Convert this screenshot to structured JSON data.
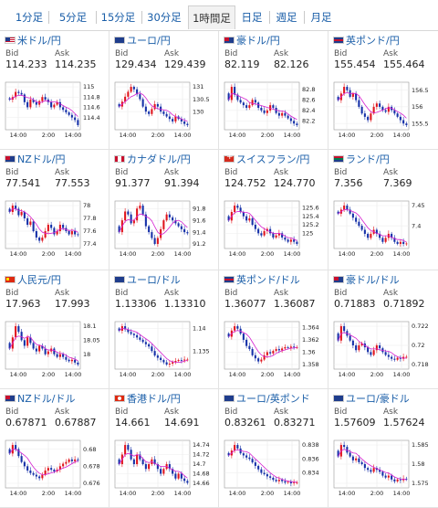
{
  "tabs": [
    {
      "label": "1分足",
      "active": false
    },
    {
      "label": "5分足",
      "active": false
    },
    {
      "label": "15分足",
      "active": false
    },
    {
      "label": "30分足",
      "active": false
    },
    {
      "label": "1時間足",
      "active": true
    },
    {
      "label": "日足",
      "active": false
    },
    {
      "label": "週足",
      "active": false
    },
    {
      "label": "月足",
      "active": false
    }
  ],
  "labels": {
    "bid": "Bid",
    "ask": "Ask"
  },
  "colors": {
    "up": "#e0141c",
    "down": "#1530a8",
    "ma": "#d51fd0",
    "link": "#1a5ea8"
  },
  "pairs": [
    {
      "name": "米ドル/円",
      "flag": "us",
      "bid": "114.233",
      "ask": "114.235",
      "chart": {
        "ticks": [
          "115",
          "114.8",
          "114.6",
          "114.4"
        ],
        "xlabels": [
          "14:00",
          "2:00",
          "14:00"
        ],
        "closes": [
          114.75,
          114.8,
          114.9,
          114.88,
          114.85,
          114.7,
          114.6,
          114.75,
          114.7,
          114.65,
          114.72,
          114.8,
          114.75,
          114.7,
          114.6,
          114.65,
          114.7,
          114.6,
          114.55,
          114.5,
          114.45,
          114.4,
          114.35,
          114.25
        ]
      }
    },
    {
      "name": "ユーロ/円",
      "flag": "eu",
      "bid": "129.434",
      "ask": "129.439",
      "chart": {
        "ticks": [
          "131",
          "130.5",
          "130"
        ],
        "xlabels": [
          "14:00",
          "2:00",
          "14:00"
        ],
        "closes": [
          130.2,
          130.4,
          130.6,
          130.8,
          131.0,
          130.9,
          130.7,
          130.5,
          130.2,
          130.0,
          129.9,
          130.1,
          130.3,
          130.2,
          130.0,
          129.9,
          129.8,
          129.7,
          129.6,
          129.8,
          129.7,
          129.6,
          129.5,
          129.45
        ]
      }
    },
    {
      "name": "豪ドル/円",
      "flag": "au",
      "bid": "82.119",
      "ask": "82.126",
      "chart": {
        "ticks": [
          "82.8",
          "82.6",
          "82.4",
          "82.2"
        ],
        "xlabels": [
          "14:00",
          "2:00",
          "14:00"
        ],
        "closes": [
          82.6,
          82.85,
          82.7,
          82.6,
          82.55,
          82.5,
          82.45,
          82.5,
          82.6,
          82.55,
          82.45,
          82.4,
          82.35,
          82.4,
          82.5,
          82.45,
          82.35,
          82.3,
          82.35,
          82.3,
          82.25,
          82.2,
          82.15,
          82.12
        ]
      }
    },
    {
      "name": "英ポンド/円",
      "flag": "gb",
      "bid": "155.454",
      "ask": "155.464",
      "chart": {
        "ticks": [
          "156.5",
          "156",
          "155.5"
        ],
        "xlabels": [
          "14:00",
          "2:00",
          "14:00"
        ],
        "closes": [
          156.2,
          156.4,
          156.6,
          156.5,
          156.3,
          156.4,
          156.2,
          156.0,
          155.8,
          155.7,
          155.6,
          155.8,
          156.0,
          156.1,
          156.0,
          155.9,
          155.85,
          156.0,
          155.9,
          155.8,
          155.7,
          155.6,
          155.5,
          155.45
        ]
      }
    },
    {
      "name": "NZドル/円",
      "flag": "nz",
      "bid": "77.541",
      "ask": "77.553",
      "chart": {
        "ticks": [
          "78",
          "77.8",
          "77.6",
          "77.4"
        ],
        "xlabels": [
          "14:00",
          "2:00",
          "14:00"
        ],
        "closes": [
          77.9,
          78.0,
          77.95,
          77.85,
          77.9,
          77.8,
          77.7,
          77.75,
          77.6,
          77.5,
          77.45,
          77.5,
          77.6,
          77.7,
          77.65,
          77.55,
          77.6,
          77.7,
          77.65,
          77.6,
          77.55,
          77.6,
          77.55,
          77.54
        ]
      }
    },
    {
      "name": "カナダドル/円",
      "flag": "ca",
      "bid": "91.377",
      "ask": "91.394",
      "chart": {
        "ticks": [
          "91.8",
          "91.6",
          "91.4",
          "91.2"
        ],
        "xlabels": [
          "14:00",
          "2:00",
          "14:00"
        ],
        "closes": [
          91.4,
          91.6,
          91.75,
          91.7,
          91.55,
          91.6,
          91.8,
          91.85,
          91.7,
          91.5,
          91.4,
          91.3,
          91.2,
          91.3,
          91.45,
          91.6,
          91.7,
          91.65,
          91.6,
          91.55,
          91.5,
          91.45,
          91.4,
          91.38
        ]
      }
    },
    {
      "name": "スイスフラン/円",
      "flag": "ch",
      "bid": "124.752",
      "ask": "124.770",
      "chart": {
        "ticks": [
          "125.6",
          "125.4",
          "125.2",
          "125"
        ],
        "xlabels": [
          "14:00",
          "2:00",
          "14:00"
        ],
        "closes": [
          125.3,
          125.5,
          125.65,
          125.6,
          125.5,
          125.4,
          125.3,
          125.35,
          125.2,
          125.1,
          125.0,
          124.95,
          125.05,
          125.1,
          125.0,
          124.9,
          124.95,
          125.0,
          124.9,
          124.85,
          124.8,
          124.85,
          124.8,
          124.75
        ]
      }
    },
    {
      "name": "ランド/円",
      "flag": "za",
      "bid": "7.356",
      "ask": "7.369",
      "chart": {
        "ticks": [
          "7.45",
          "7.4"
        ],
        "xlabels": [
          "14:00",
          "2:00",
          "14:00"
        ],
        "closes": [
          7.43,
          7.44,
          7.45,
          7.44,
          7.43,
          7.42,
          7.41,
          7.4,
          7.39,
          7.38,
          7.37,
          7.38,
          7.39,
          7.38,
          7.37,
          7.36,
          7.37,
          7.38,
          7.37,
          7.36,
          7.355,
          7.36,
          7.355,
          7.356
        ]
      }
    },
    {
      "name": "人民元/円",
      "flag": "cn",
      "bid": "17.963",
      "ask": "17.993",
      "chart": {
        "ticks": [
          "18.1",
          "18.05",
          "18"
        ],
        "xlabels": [
          "14:00",
          "2:00",
          "14:00"
        ],
        "closes": [
          18.02,
          18.06,
          18.1,
          18.08,
          18.05,
          18.03,
          18.06,
          18.04,
          18.02,
          18.01,
          18.03,
          18.02,
          18.0,
          18.01,
          18.02,
          18.0,
          17.99,
          18.0,
          17.99,
          17.98,
          17.975,
          17.98,
          17.97,
          17.963
        ]
      }
    },
    {
      "name": "ユーロ/ドル",
      "flag": "eu",
      "bid": "1.13306",
      "ask": "1.13310",
      "chart": {
        "ticks": [
          "1.14",
          "1.135"
        ],
        "xlabels": [
          "14:00",
          "2:00",
          "14:00"
        ],
        "closes": [
          1.1395,
          1.1405,
          1.1398,
          1.1392,
          1.1388,
          1.1385,
          1.138,
          1.1375,
          1.137,
          1.1365,
          1.136,
          1.135,
          1.134,
          1.1335,
          1.133,
          1.1325,
          1.132,
          1.1322,
          1.1325,
          1.1328,
          1.133,
          1.1329,
          1.1331,
          1.1331
        ]
      }
    },
    {
      "name": "英ポンド/ドル",
      "flag": "gb",
      "bid": "1.36077",
      "ask": "1.36087",
      "chart": {
        "ticks": [
          "1.364",
          "1.362",
          "1.36",
          "1.358"
        ],
        "xlabels": [
          "14:00",
          "2:00",
          "14:00"
        ],
        "closes": [
          1.3625,
          1.3635,
          1.3642,
          1.3638,
          1.363,
          1.362,
          1.361,
          1.3605,
          1.3595,
          1.359,
          1.3585,
          1.3588,
          1.3595,
          1.36,
          1.3598,
          1.3602,
          1.3605,
          1.3603,
          1.3606,
          1.3608,
          1.3607,
          1.3609,
          1.3608,
          1.3608
        ]
      }
    },
    {
      "name": "豪ドル/ドル",
      "flag": "au",
      "bid": "0.71883",
      "ask": "0.71892",
      "chart": {
        "ticks": [
          "0.722",
          "0.72",
          "0.718"
        ],
        "xlabels": [
          "14:00",
          "2:00",
          "14:00"
        ],
        "closes": [
          0.7205,
          0.722,
          0.7215,
          0.721,
          0.7205,
          0.72,
          0.7195,
          0.72,
          0.7202,
          0.7198,
          0.7193,
          0.719,
          0.7195,
          0.72,
          0.7197,
          0.7193,
          0.719,
          0.7188,
          0.7186,
          0.7185,
          0.7187,
          0.7186,
          0.7188,
          0.7188
        ]
      }
    },
    {
      "name": "NZドル/ドル",
      "flag": "nz",
      "bid": "0.67871",
      "ask": "0.67887",
      "chart": {
        "ticks": [
          "0.68",
          "0.678",
          "0.676"
        ],
        "xlabels": [
          "14:00",
          "2:00",
          "14:00"
        ],
        "closes": [
          0.6795,
          0.6805,
          0.68,
          0.6792,
          0.6785,
          0.678,
          0.6775,
          0.6772,
          0.677,
          0.6768,
          0.6766,
          0.677,
          0.6775,
          0.6778,
          0.6776,
          0.6774,
          0.6776,
          0.678,
          0.6783,
          0.6785,
          0.6788,
          0.6786,
          0.6788,
          0.6787
        ]
      }
    },
    {
      "name": "香港ドル/円",
      "flag": "hk",
      "bid": "14.661",
      "ask": "14.691",
      "chart": {
        "ticks": [
          "14.74",
          "14.72",
          "14.7",
          "14.68",
          "14.66"
        ],
        "xlabels": [
          "14:00",
          "2:00",
          "14:00"
        ],
        "closes": [
          14.7,
          14.72,
          14.74,
          14.73,
          14.71,
          14.7,
          14.72,
          14.71,
          14.7,
          14.69,
          14.7,
          14.71,
          14.7,
          14.69,
          14.68,
          14.69,
          14.7,
          14.69,
          14.68,
          14.67,
          14.68,
          14.67,
          14.665,
          14.661
        ]
      }
    },
    {
      "name": "ユーロ/英ポンド",
      "flag": "eu",
      "bid": "0.83261",
      "ask": "0.83271",
      "chart": {
        "ticks": [
          "0.838",
          "0.836",
          "0.834"
        ],
        "xlabels": [
          "14:00",
          "2:00",
          "14:00"
        ],
        "closes": [
          0.8365,
          0.8372,
          0.838,
          0.8375,
          0.8368,
          0.8365,
          0.8362,
          0.836,
          0.8355,
          0.835,
          0.8345,
          0.834,
          0.8338,
          0.8335,
          0.8333,
          0.833,
          0.8328,
          0.833,
          0.8328,
          0.8326,
          0.8327,
          0.8325,
          0.8326,
          0.8326
        ]
      }
    },
    {
      "name": "ユーロ/豪ドル",
      "flag": "eu",
      "bid": "1.57609",
      "ask": "1.57624",
      "chart": {
        "ticks": [
          "1.585",
          "1.58",
          "1.575"
        ],
        "xlabels": [
          "14:00",
          "2:00",
          "14:00"
        ],
        "closes": [
          1.582,
          1.585,
          1.5845,
          1.583,
          1.582,
          1.581,
          1.5815,
          1.5805,
          1.58,
          1.579,
          1.5785,
          1.578,
          1.579,
          1.5785,
          1.578,
          1.577,
          1.5765,
          1.577,
          1.576,
          1.5755,
          1.576,
          1.5758,
          1.5762,
          1.5761
        ]
      }
    }
  ]
}
